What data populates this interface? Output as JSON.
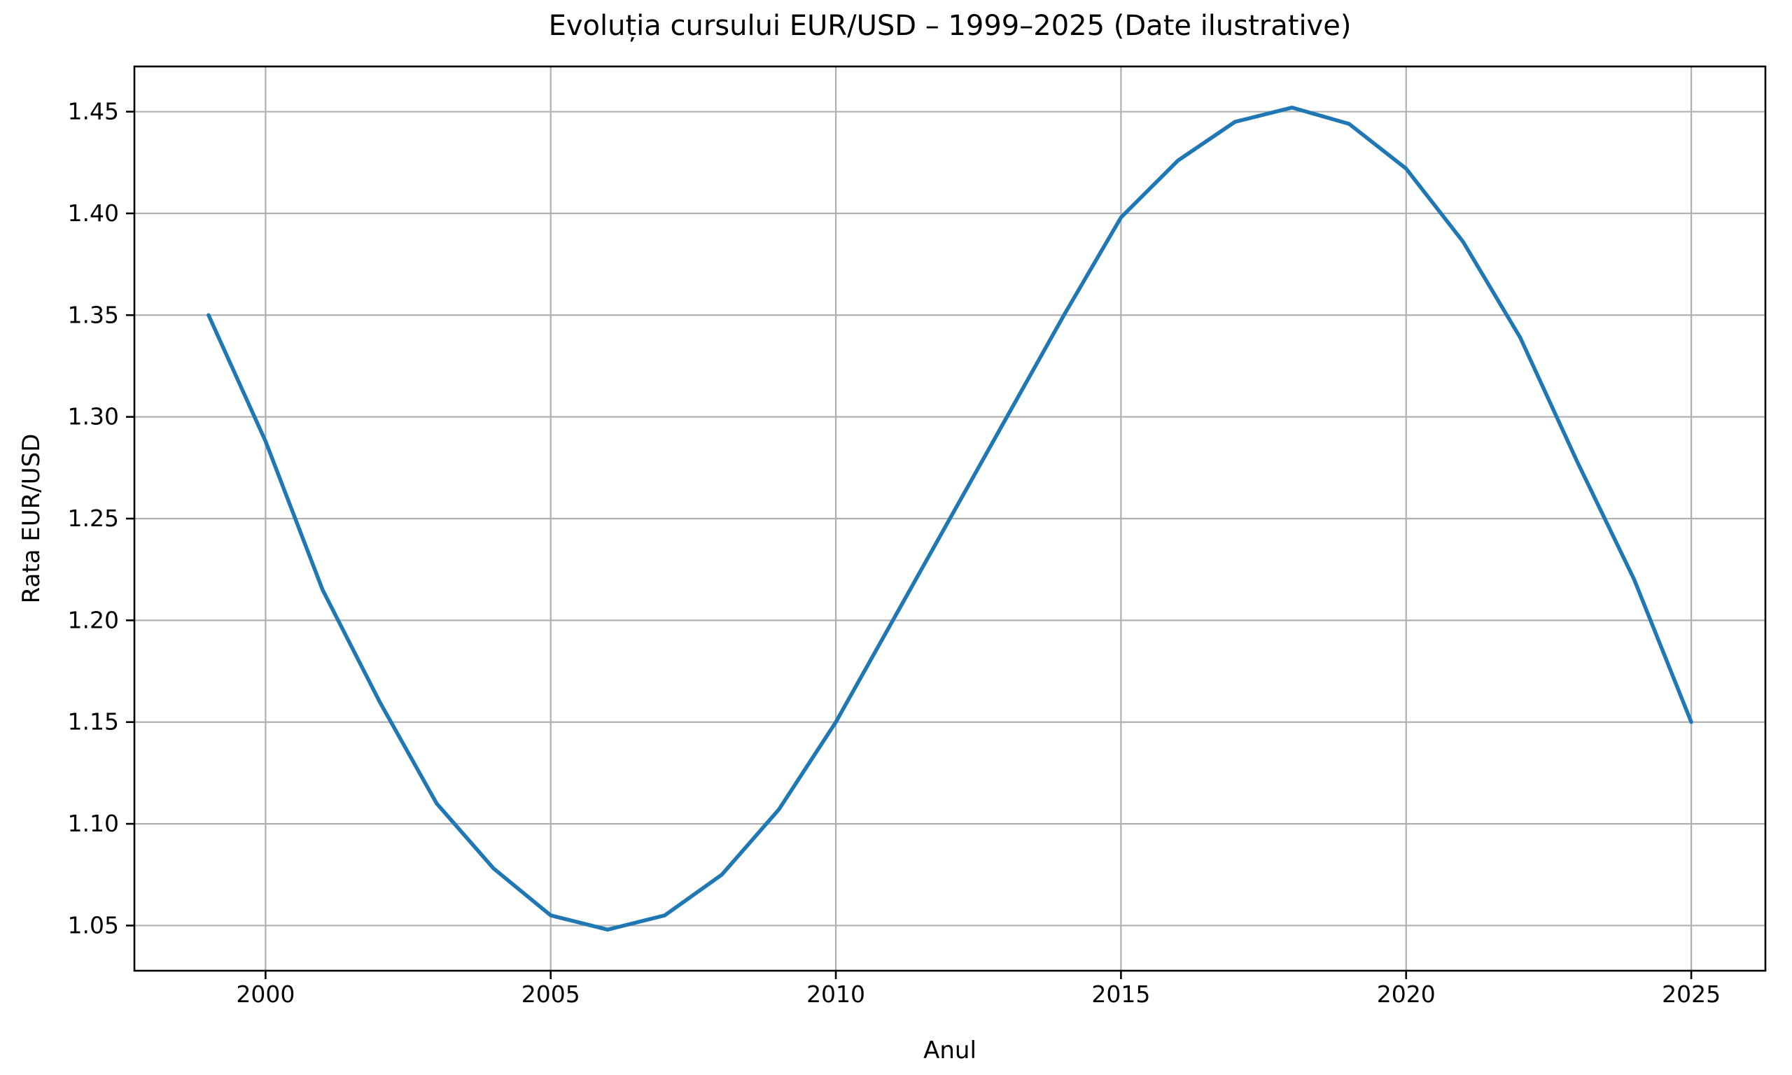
{
  "figure": {
    "background_color": "#ffffff",
    "text_color": "#000000",
    "grid_color": "#b0b0b0"
  },
  "chart_data": {
    "type": "line",
    "title": "Evoluția cursului EUR/USD – 1999–2025 (Date ilustrative)",
    "xlabel": "Anul",
    "ylabel": "Rata EUR/USD",
    "x": [
      1999,
      2000,
      2001,
      2002,
      2003,
      2004,
      2005,
      2006,
      2007,
      2008,
      2009,
      2010,
      2011,
      2012,
      2013,
      2014,
      2015,
      2016,
      2017,
      2018,
      2019,
      2020,
      2021,
      2022,
      2023,
      2024,
      2025
    ],
    "values": [
      1.35,
      1.288,
      1.215,
      1.16,
      1.11,
      1.078,
      1.055,
      1.048,
      1.055,
      1.075,
      1.107,
      1.15,
      1.2,
      1.25,
      1.3,
      1.35,
      1.398,
      1.426,
      1.445,
      1.452,
      1.444,
      1.422,
      1.386,
      1.339,
      1.278,
      1.22,
      1.15
    ],
    "series_name": "EUR/USD",
    "line_color": "#1f77b4",
    "xlim": [
      1997.7,
      2026.3
    ],
    "ylim": [
      1.0278,
      1.4722
    ],
    "xticks": [
      2000,
      2005,
      2010,
      2015,
      2020,
      2025
    ],
    "ytick_labels": [
      "1.05",
      "1.10",
      "1.15",
      "1.20",
      "1.25",
      "1.30",
      "1.35",
      "1.40",
      "1.45"
    ],
    "grid": true,
    "legend": null,
    "markers": false
  }
}
